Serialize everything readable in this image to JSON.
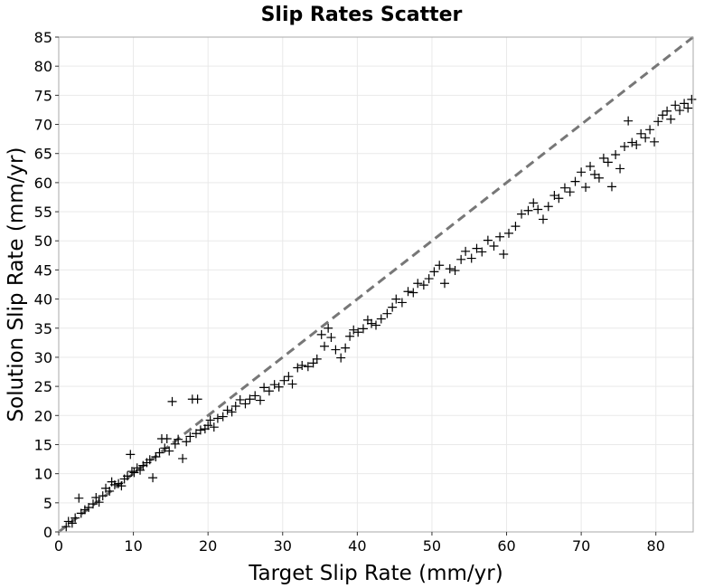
{
  "chart_data": {
    "type": "scatter",
    "title": "Slip Rates Scatter",
    "xlabel": "Target Slip Rate (mm/yr)",
    "ylabel": "Solution Slip Rate (mm/yr)",
    "xlim": [
      0,
      85
    ],
    "ylim": [
      0,
      85
    ],
    "xticks": [
      0,
      10,
      20,
      30,
      40,
      50,
      60,
      70,
      80
    ],
    "yticks": [
      0,
      5,
      10,
      15,
      20,
      25,
      30,
      35,
      40,
      45,
      50,
      55,
      60,
      65,
      70,
      75,
      80,
      85
    ],
    "grid": true,
    "marker": "+",
    "marker_color": "#000000",
    "reference_line": {
      "style": "dashed",
      "color": "#777777",
      "from": [
        0,
        0
      ],
      "to": [
        85,
        85
      ]
    },
    "series": [
      {
        "points": [
          [
            1.0,
            0.9
          ],
          [
            1.3,
            1.8
          ],
          [
            1.8,
            1.5
          ],
          [
            2.2,
            2.4
          ],
          [
            2.7,
            5.8
          ],
          [
            3.0,
            3.2
          ],
          [
            3.5,
            3.8
          ],
          [
            4.0,
            4.2
          ],
          [
            4.6,
            4.8
          ],
          [
            5.0,
            5.9
          ],
          [
            5.4,
            5.1
          ],
          [
            5.9,
            6.2
          ],
          [
            6.3,
            7.5
          ],
          [
            6.8,
            7.0
          ],
          [
            7.1,
            8.6
          ],
          [
            7.5,
            8.1
          ],
          [
            8.0,
            8.3
          ],
          [
            8.4,
            7.9
          ],
          [
            8.8,
            9.1
          ],
          [
            9.2,
            9.6
          ],
          [
            9.6,
            13.3
          ],
          [
            9.8,
            10.4
          ],
          [
            10.1,
            10.2
          ],
          [
            10.5,
            11.0
          ],
          [
            10.9,
            10.6
          ],
          [
            11.3,
            11.4
          ],
          [
            11.8,
            11.9
          ],
          [
            12.2,
            12.4
          ],
          [
            12.6,
            9.3
          ],
          [
            13.0,
            12.9
          ],
          [
            13.5,
            13.6
          ],
          [
            13.8,
            16.0
          ],
          [
            14.2,
            14.4
          ],
          [
            14.5,
            16.0
          ],
          [
            14.8,
            13.9
          ],
          [
            15.2,
            22.4
          ],
          [
            15.6,
            15.1
          ],
          [
            16.0,
            15.9
          ],
          [
            16.6,
            12.6
          ],
          [
            17.1,
            15.5
          ],
          [
            17.6,
            16.4
          ],
          [
            17.9,
            22.8
          ],
          [
            18.4,
            16.9
          ],
          [
            18.6,
            22.8
          ],
          [
            19.0,
            17.5
          ],
          [
            19.6,
            17.7
          ],
          [
            20.0,
            18.3
          ],
          [
            20.3,
            19.2
          ],
          [
            20.8,
            18.0
          ],
          [
            21.3,
            19.5
          ],
          [
            22.0,
            19.8
          ],
          [
            22.6,
            20.9
          ],
          [
            23.2,
            20.6
          ],
          [
            23.7,
            21.6
          ],
          [
            24.3,
            22.7
          ],
          [
            25.0,
            22.0
          ],
          [
            25.6,
            22.8
          ],
          [
            26.3,
            23.4
          ],
          [
            27.0,
            22.6
          ],
          [
            27.5,
            24.8
          ],
          [
            28.2,
            24.2
          ],
          [
            28.9,
            25.3
          ],
          [
            29.5,
            24.9
          ],
          [
            30.2,
            26.0
          ],
          [
            30.8,
            26.7
          ],
          [
            31.3,
            25.4
          ],
          [
            32.0,
            28.2
          ],
          [
            32.6,
            28.6
          ],
          [
            33.4,
            28.4
          ],
          [
            34.1,
            29.0
          ],
          [
            34.6,
            29.7
          ],
          [
            35.2,
            33.9
          ],
          [
            35.6,
            31.9
          ],
          [
            36.1,
            35.0
          ],
          [
            36.5,
            33.4
          ],
          [
            37.1,
            31.3
          ],
          [
            37.8,
            29.9
          ],
          [
            38.4,
            31.6
          ],
          [
            39.0,
            33.6
          ],
          [
            39.5,
            34.7
          ],
          [
            40.1,
            34.3
          ],
          [
            40.8,
            34.9
          ],
          [
            41.4,
            36.4
          ],
          [
            41.9,
            35.8
          ],
          [
            42.5,
            35.5
          ],
          [
            43.2,
            36.6
          ],
          [
            44.0,
            37.5
          ],
          [
            44.7,
            38.6
          ],
          [
            45.2,
            40.0
          ],
          [
            46.0,
            39.4
          ],
          [
            46.8,
            41.3
          ],
          [
            47.5,
            41.1
          ],
          [
            48.1,
            42.7
          ],
          [
            48.9,
            42.4
          ],
          [
            49.6,
            43.5
          ],
          [
            50.3,
            44.7
          ],
          [
            51.0,
            45.8
          ],
          [
            51.7,
            42.7
          ],
          [
            52.4,
            45.2
          ],
          [
            53.1,
            44.9
          ],
          [
            53.9,
            46.8
          ],
          [
            54.5,
            48.2
          ],
          [
            55.3,
            47.0
          ],
          [
            56.0,
            48.7
          ],
          [
            56.7,
            48.1
          ],
          [
            57.5,
            50.1
          ],
          [
            58.3,
            49.1
          ],
          [
            59.1,
            50.7
          ],
          [
            59.6,
            47.7
          ],
          [
            60.3,
            51.3
          ],
          [
            61.2,
            52.5
          ],
          [
            62.0,
            54.6
          ],
          [
            62.9,
            55.2
          ],
          [
            63.6,
            56.5
          ],
          [
            64.2,
            55.4
          ],
          [
            64.9,
            53.7
          ],
          [
            65.6,
            55.9
          ],
          [
            66.4,
            57.8
          ],
          [
            67.0,
            57.3
          ],
          [
            67.8,
            59.1
          ],
          [
            68.5,
            58.4
          ],
          [
            69.2,
            60.2
          ],
          [
            70.0,
            61.8
          ],
          [
            70.6,
            59.2
          ],
          [
            71.2,
            62.8
          ],
          [
            71.8,
            61.4
          ],
          [
            72.4,
            60.8
          ],
          [
            73.0,
            64.2
          ],
          [
            73.6,
            63.5
          ],
          [
            74.1,
            59.3
          ],
          [
            74.6,
            64.8
          ],
          [
            75.2,
            62.4
          ],
          [
            75.8,
            66.2
          ],
          [
            76.3,
            70.6
          ],
          [
            76.8,
            66.9
          ],
          [
            77.4,
            66.5
          ],
          [
            78.0,
            68.4
          ],
          [
            78.6,
            67.7
          ],
          [
            79.2,
            69.1
          ],
          [
            79.8,
            67.0
          ],
          [
            80.3,
            70.5
          ],
          [
            80.9,
            71.6
          ],
          [
            81.5,
            72.3
          ],
          [
            82.0,
            70.9
          ],
          [
            82.6,
            73.3
          ],
          [
            83.2,
            72.4
          ],
          [
            83.8,
            73.6
          ],
          [
            84.3,
            72.8
          ],
          [
            84.8,
            74.3
          ]
        ]
      }
    ]
  }
}
